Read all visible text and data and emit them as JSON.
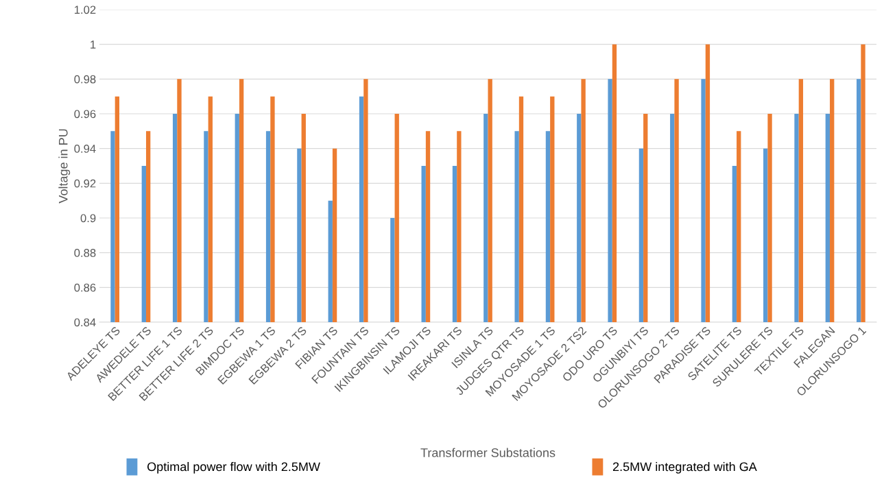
{
  "chart_data": {
    "type": "bar",
    "xlabel": "Transformer Substations",
    "ylabel": "Voltage in PU",
    "categories": [
      "ADELEYE TS",
      "AWEDELE TS",
      "BETTER LIFE 1 TS",
      "BETTER LIFE 2 TS",
      "BIMDOC TS",
      "EGBEWA 1 TS",
      "EGBEWA 2 TS",
      "FIBIAN TS",
      "FOUNTAIN TS",
      "IKINGBINSIN TS",
      "ILAMOJI TS",
      "IREAKARI TS",
      "ISINLA TS",
      "JUDGES QTR TS",
      "MOYOSADE 1 TS",
      "MOYOSADE 2 TS2",
      "ODO URO TS",
      "OGUNBIYI TS",
      "OLORUNSOGO 2 TS",
      "PARADISE TS",
      "SATELITE TS",
      "SURULERE TS",
      "TEXTILE TS",
      "FALEGAN",
      "OLORUNSOGO 1"
    ],
    "series": [
      {
        "name": "Optimal power flow with 2.5MW",
        "color": "#5b9bd5",
        "values": [
          0.95,
          0.93,
          0.96,
          0.95,
          0.96,
          0.95,
          0.94,
          0.91,
          0.97,
          0.9,
          0.93,
          0.93,
          0.96,
          0.95,
          0.95,
          0.96,
          0.98,
          0.94,
          0.96,
          0.98,
          0.93,
          0.94,
          0.96,
          0.96,
          0.98
        ]
      },
      {
        "name": "2.5MW integrated with GA",
        "color": "#ed7d31",
        "values": [
          0.97,
          0.95,
          0.98,
          0.97,
          0.98,
          0.97,
          0.96,
          0.94,
          0.98,
          0.96,
          0.95,
          0.95,
          0.98,
          0.97,
          0.97,
          0.98,
          1.0,
          0.96,
          0.98,
          1.0,
          0.95,
          0.96,
          0.98,
          0.98,
          1.0
        ]
      }
    ],
    "ylim": [
      0.84,
      1.02
    ],
    "yticks": [
      0.84,
      0.86,
      0.88,
      0.9,
      0.92,
      0.94,
      0.96,
      0.98,
      1,
      1.02
    ],
    "grid": "y",
    "legend": "bottom"
  }
}
